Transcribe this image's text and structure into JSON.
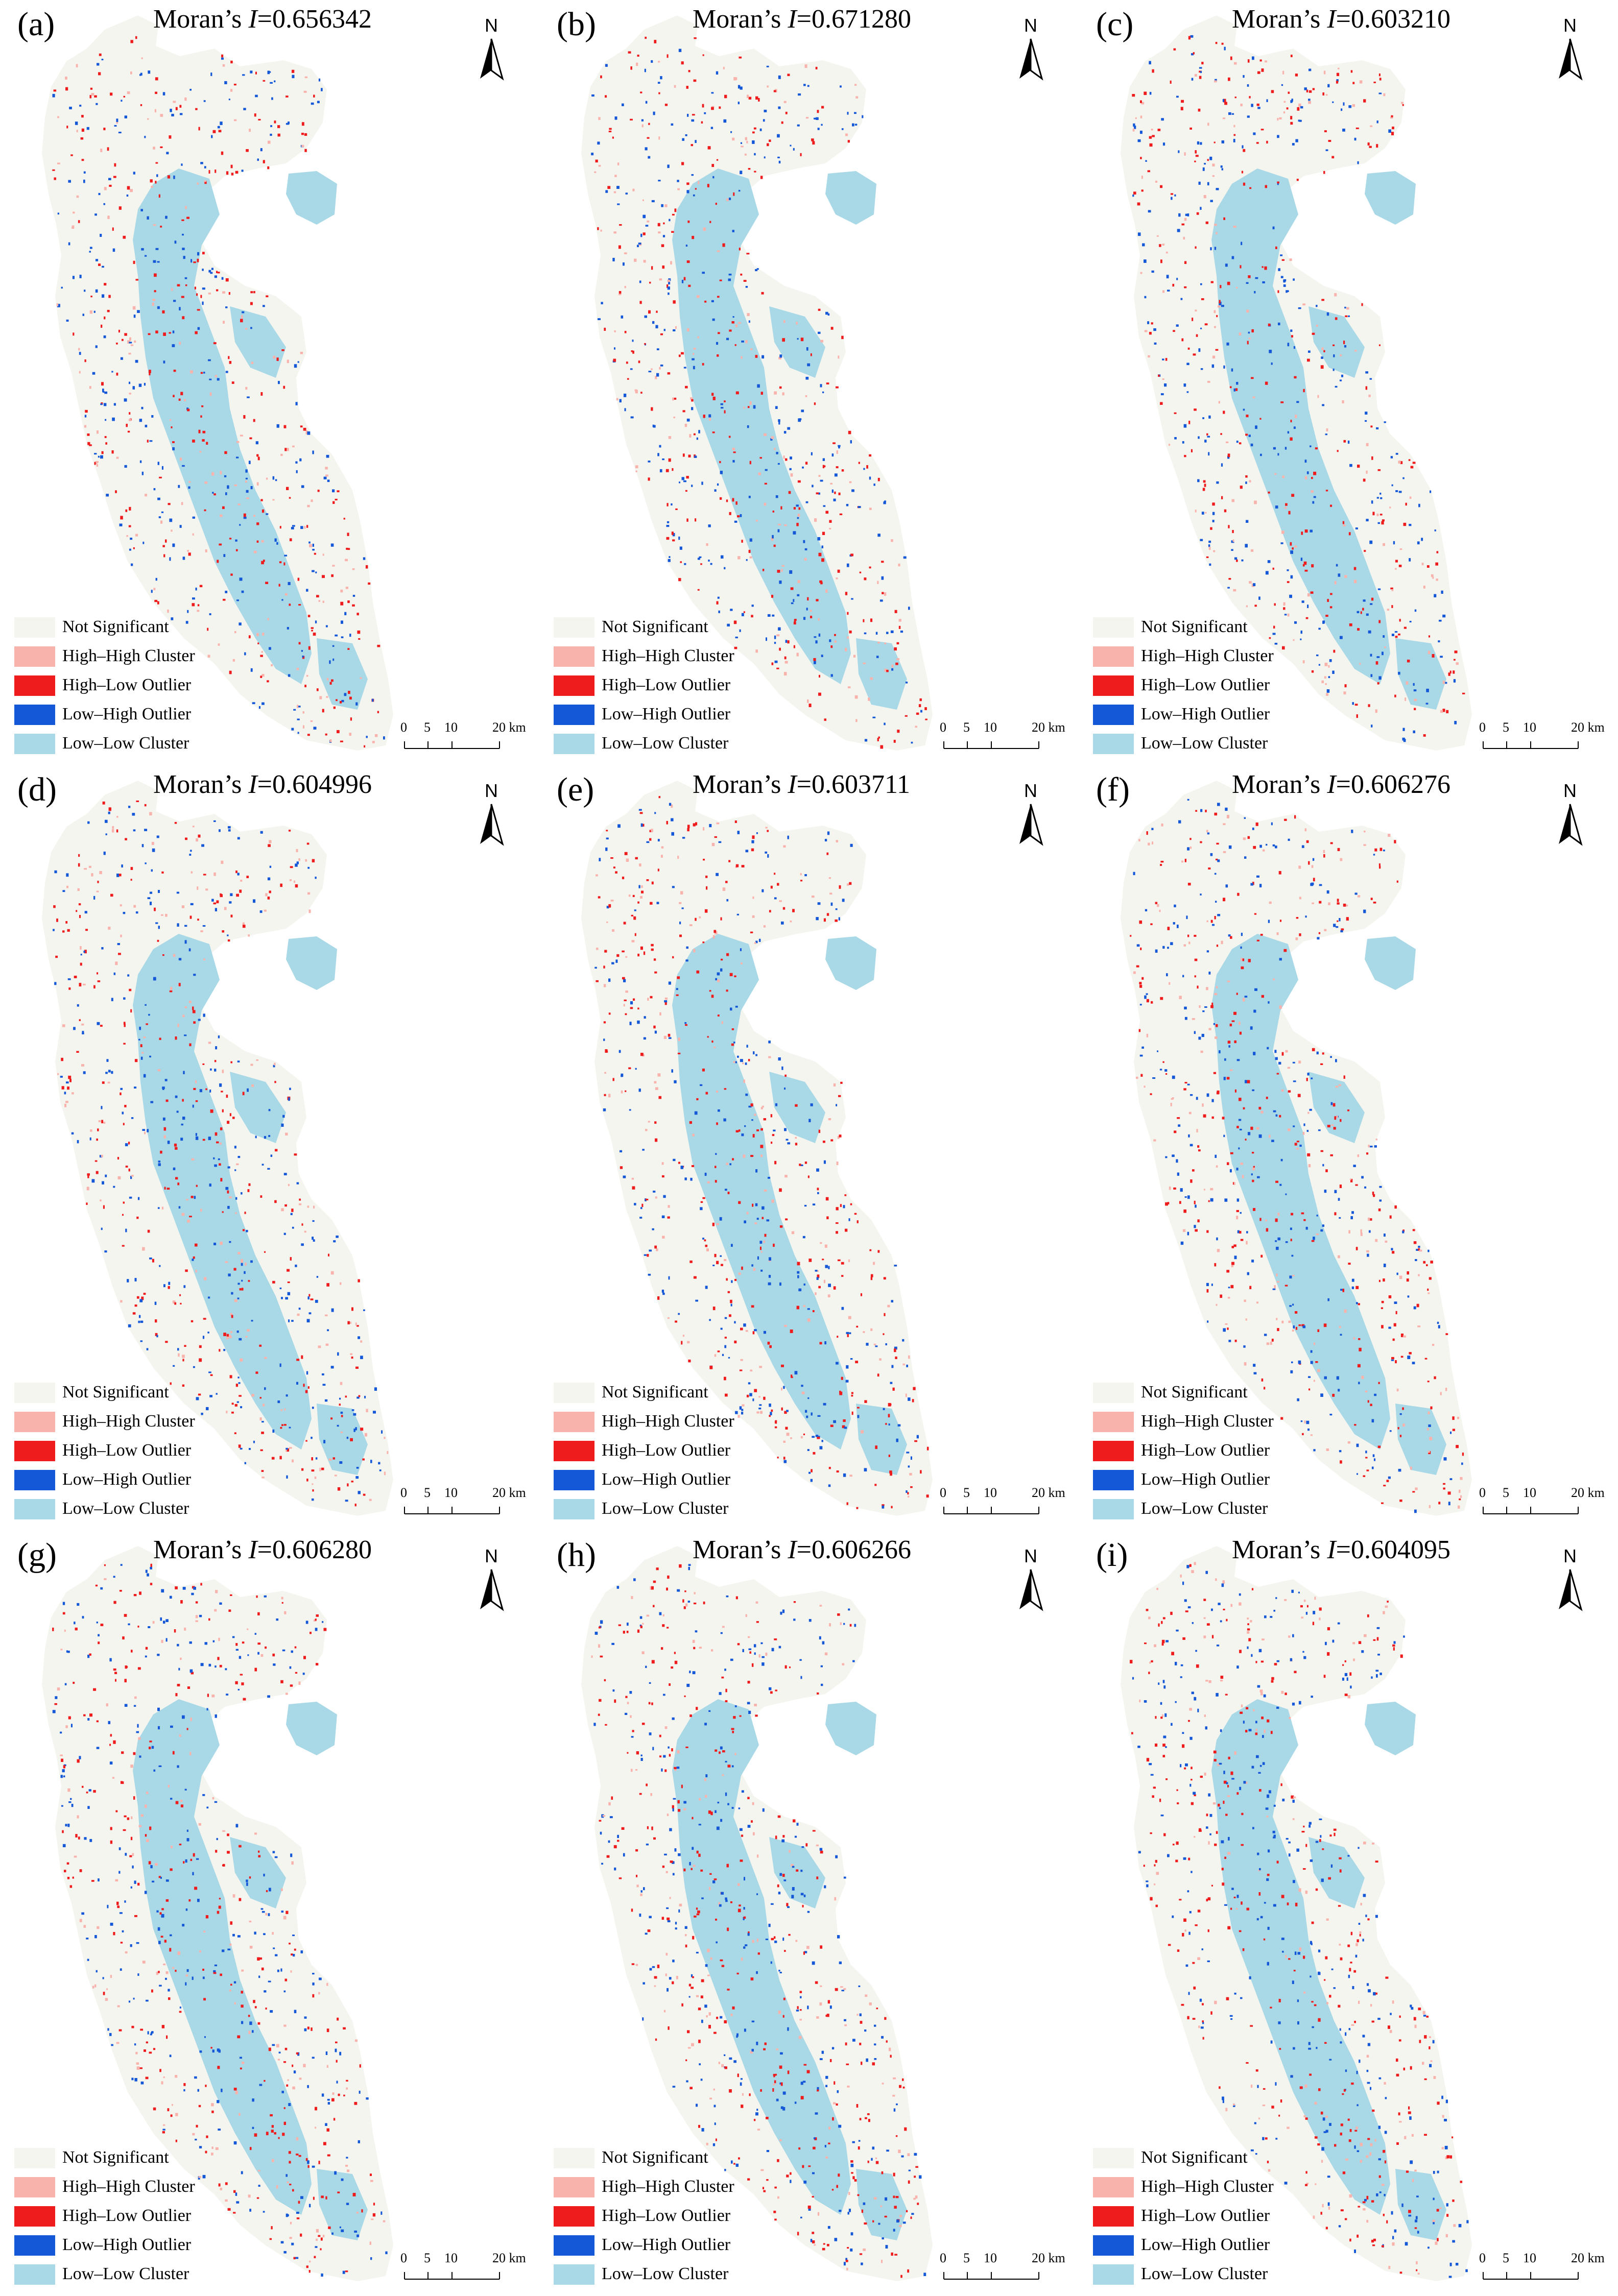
{
  "figure": {
    "title_prefix": "Moran’s ",
    "title_symbol": "I",
    "panels": [
      {
        "label": "(a)",
        "moran_value": "=0.656342"
      },
      {
        "label": "(b)",
        "moran_value": "=0.671280"
      },
      {
        "label": "(c)",
        "moran_value": "=0.603210"
      },
      {
        "label": "(d)",
        "moran_value": "=0.604996"
      },
      {
        "label": "(e)",
        "moran_value": "=0.603711"
      },
      {
        "label": "(f)",
        "moran_value": "=0.606276"
      },
      {
        "label": "(g)",
        "moran_value": "=0.606280"
      },
      {
        "label": "(h)",
        "moran_value": "=0.606266"
      },
      {
        "label": "(i)",
        "moran_value": "=0.604095"
      }
    ]
  },
  "legend": {
    "items": [
      {
        "label": "Not Significant",
        "color": "#f5f5f0"
      },
      {
        "label": "High–High Cluster",
        "color": "#f8b3ad"
      },
      {
        "label": "High–Low Outlier",
        "color": "#ee1c1c"
      },
      {
        "label": "Low–High Outlier",
        "color": "#1458d8"
      },
      {
        "label": "Low–Low Cluster",
        "color": "#a9d8e6"
      }
    ]
  },
  "north_arrow": {
    "label": "N"
  },
  "scale_bar": {
    "ticks": [
      "0",
      "5",
      "10",
      "20 km"
    ]
  },
  "colors": {
    "background": "#ffffff",
    "region_fill": "#f5f5f0",
    "low_low": "#a9d8e6",
    "high_high": "#f8b3ad",
    "high_low": "#ee1c1c",
    "low_high": "#1458d8"
  }
}
